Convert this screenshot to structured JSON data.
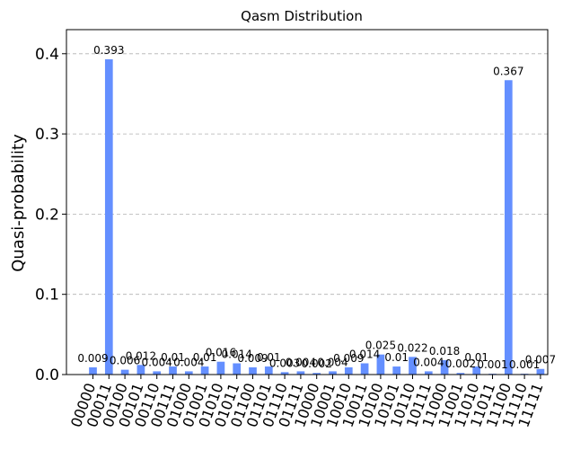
{
  "chart_data": {
    "type": "bar",
    "title": "Qasm Distribution",
    "xlabel": "",
    "ylabel": "Quasi-probability",
    "ylim": [
      0,
      0.43
    ],
    "yticks": [
      0.0,
      0.1,
      0.2,
      0.3,
      0.4
    ],
    "ytick_labels": [
      "0.0",
      "0.1",
      "0.2",
      "0.3",
      "0.4"
    ],
    "grid": "y",
    "bar_color": "#648fff",
    "categories": [
      "00000",
      "00011",
      "00100",
      "00101",
      "00110",
      "00111",
      "01000",
      "01001",
      "01010",
      "01011",
      "01100",
      "01101",
      "01110",
      "01111",
      "10000",
      "10001",
      "10010",
      "10011",
      "10100",
      "10101",
      "10110",
      "10111",
      "11000",
      "11001",
      "11010",
      "11011",
      "11100",
      "11110",
      "11111"
    ],
    "values": [
      0.009,
      0.393,
      0.006,
      0.012,
      0.004,
      0.01,
      0.004,
      0.01,
      0.016,
      0.014,
      0.009,
      0.01,
      0.003,
      0.004,
      0.002,
      0.004,
      0.009,
      0.014,
      0.025,
      0.01,
      0.022,
      0.004,
      0.018,
      0.002,
      0.01,
      0.001,
      0.367,
      0.001,
      0.007
    ],
    "value_labels": [
      "0.009",
      "0.393",
      "0.006",
      "0.012",
      "0.004",
      "0.01",
      "0.004",
      "0.01",
      "0.016",
      "0.014",
      "0.009",
      "0.01",
      "0.003",
      "0.004",
      "0.002",
      "0.004",
      "0.009",
      "0.014",
      "0.025",
      "0.01",
      "0.022",
      "0.004",
      "0.018",
      "0.002",
      "0.01",
      "0.001",
      "0.367",
      "0.001",
      "0.007"
    ]
  }
}
